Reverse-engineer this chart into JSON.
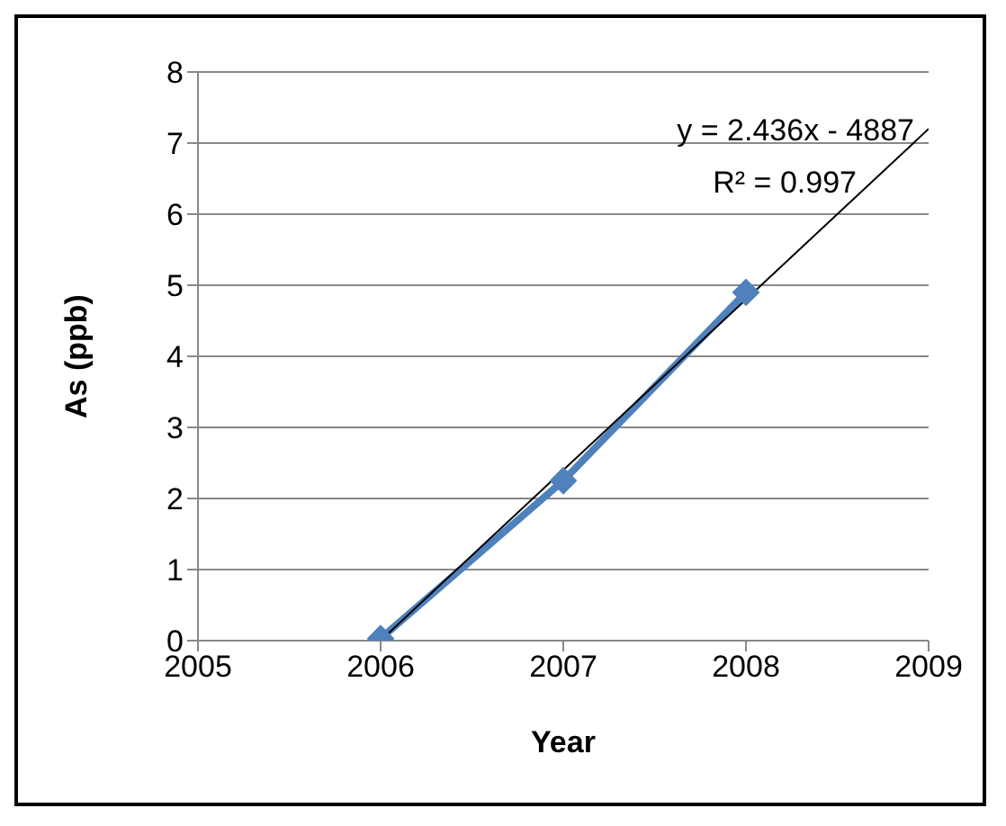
{
  "chart_data": {
    "type": "line",
    "xlabel": "Year",
    "ylabel": "As (ppb)",
    "x": [
      2006,
      2007,
      2008
    ],
    "series": [
      {
        "color": "#4f81bd",
        "values": [
          0.03,
          2.25,
          4.9
        ],
        "marker": "diamond",
        "line_style": "solid"
      },
      {
        "type": "line",
        "color": "#000000",
        "x": [
          2006,
          2009
        ],
        "values": [
          0,
          7.2
        ],
        "marker": "none",
        "line_style": "solid"
      }
    ],
    "xlim": [
      2005,
      2009
    ],
    "xticks": [
      2005,
      2006,
      2007,
      2008,
      2009
    ],
    "ylim": [
      0,
      8
    ],
    "yticks": [
      0,
      1,
      2,
      3,
      4,
      5,
      6,
      7,
      8
    ],
    "grid": "y",
    "annotations": [
      "y = 2.436x - 4887",
      "R² = 0.997"
    ]
  }
}
